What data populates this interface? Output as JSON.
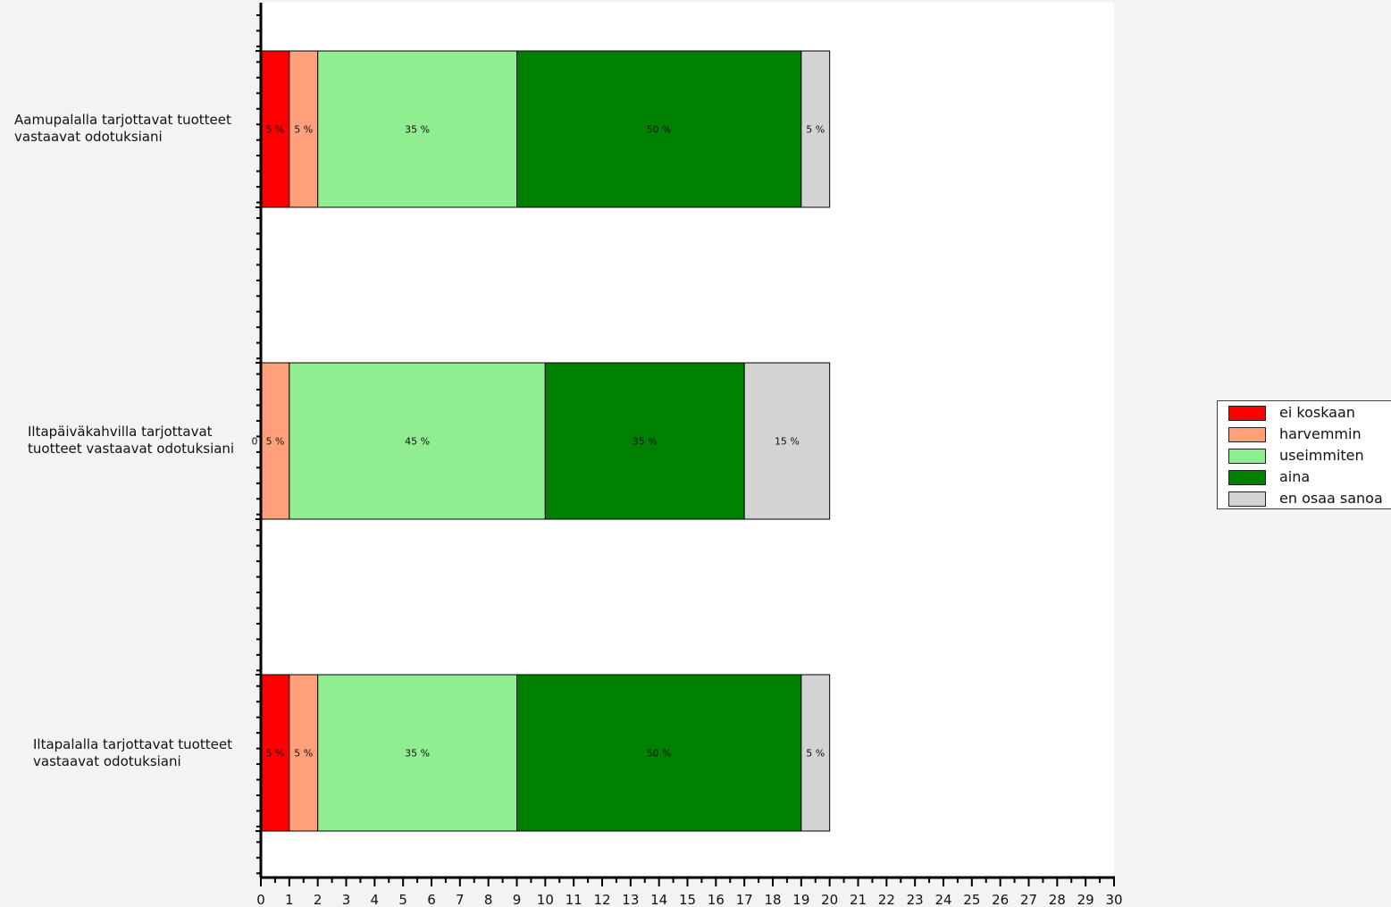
{
  "chart_data": {
    "type": "bar",
    "orientation": "horizontal",
    "stacked": true,
    "categories": [
      "Aamupalalla tarjottavat tuotteet\nvastaavat odotuksiani",
      "Iltapäiväkahvilla tarjottavat\ntuotteet vastaavat odotuksiani",
      "Iltapalalla tarjottavat tuotteet\nvastaavat odotuksiani"
    ],
    "series": [
      {
        "name": "ei koskaan",
        "color": "#ff0000",
        "values": [
          1,
          0,
          1
        ],
        "labels": [
          "5 %",
          "0 %",
          "5 %"
        ]
      },
      {
        "name": "harvemmin",
        "color": "#ffa07a",
        "values": [
          1,
          1,
          1
        ],
        "labels": [
          "5 %",
          "5 %",
          "5 %"
        ]
      },
      {
        "name": "useimmiten",
        "color": "#90ee90",
        "values": [
          7,
          9,
          7
        ],
        "labels": [
          "35 %",
          "45 %",
          "35 %"
        ]
      },
      {
        "name": "aina",
        "color": "#008000",
        "values": [
          10,
          7,
          10
        ],
        "labels": [
          "50 %",
          "35 %",
          "50 %"
        ]
      },
      {
        "name": "en osaa sanoa",
        "color": "#d3d3d3",
        "values": [
          1,
          3,
          1
        ],
        "labels": [
          "5 %",
          "15 %",
          "5 %"
        ]
      }
    ],
    "xlim": [
      0,
      30
    ],
    "xticks": [
      "0",
      "1",
      "2",
      "3",
      "4",
      "5",
      "6",
      "7",
      "8",
      "9",
      "10",
      "11",
      "12",
      "13",
      "14",
      "15",
      "16",
      "17",
      "18",
      "19",
      "20",
      "21",
      "22",
      "23",
      "24",
      "25",
      "26",
      "27",
      "28",
      "29",
      "30"
    ],
    "title": "",
    "xlabel": "",
    "ylabel": "",
    "grid": false,
    "legend_position": "right"
  },
  "colors": {
    "background": "#f3f3f3",
    "plot_background": "#ffffff"
  }
}
